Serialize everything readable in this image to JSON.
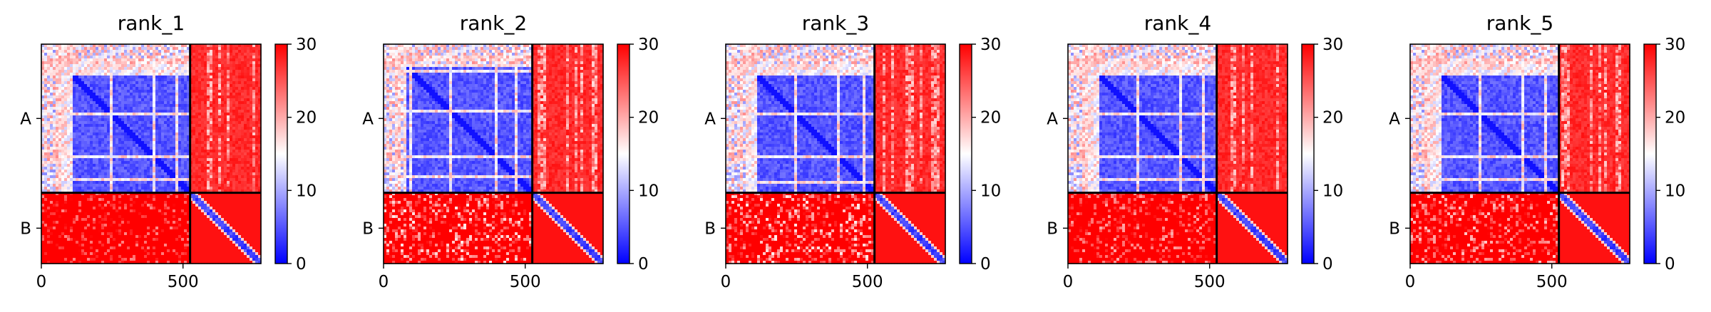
{
  "chart_data": [
    {
      "type": "heatmap",
      "title": "rank_1",
      "chains": [
        "A",
        "B"
      ],
      "chain_boundary": 525,
      "length": 775,
      "xlim": [
        0,
        775
      ],
      "xticks": [
        0,
        500
      ],
      "xtick_labels": [
        "0",
        "500"
      ],
      "colorbar": {
        "cmap": "bwr",
        "range": [
          0,
          30
        ],
        "ticks": [
          0,
          10,
          20,
          30
        ],
        "tick_labels": [
          "0",
          "10",
          "20",
          "30"
        ],
        "colors": [
          "#0000ff",
          "#ffffff",
          "#ff0000"
        ]
      },
      "light_stripes": [
        60,
        80,
        100,
        245,
        400,
        480
      ],
      "inter_chain_noise": 0.2
    },
    {
      "type": "heatmap",
      "title": "rank_2",
      "chains": [
        "A",
        "B"
      ],
      "chain_boundary": 525,
      "length": 775,
      "xlim": [
        0,
        775
      ],
      "xticks": [
        0,
        500
      ],
      "xtick_labels": [
        "0",
        "500"
      ],
      "colorbar": {
        "cmap": "bwr",
        "range": [
          0,
          30
        ],
        "ticks": [
          0,
          10,
          20,
          30
        ],
        "tick_labels": [
          "0",
          "10",
          "20",
          "30"
        ],
        "colors": [
          "#0000ff",
          "#ffffff",
          "#ff0000"
        ]
      },
      "light_stripes": [
        50,
        75,
        95,
        240,
        395,
        470
      ],
      "inter_chain_noise": 0.35
    },
    {
      "type": "heatmap",
      "title": "rank_3",
      "chains": [
        "A",
        "B"
      ],
      "chain_boundary": 525,
      "length": 775,
      "xlim": [
        0,
        775
      ],
      "xticks": [
        0,
        500
      ],
      "xtick_labels": [
        "0",
        "500"
      ],
      "colorbar": {
        "cmap": "bwr",
        "range": [
          0,
          30
        ],
        "ticks": [
          0,
          10,
          20,
          30
        ],
        "tick_labels": [
          "0",
          "10",
          "20",
          "30"
        ],
        "colors": [
          "#0000ff",
          "#ffffff",
          "#ff0000"
        ]
      },
      "light_stripes": [
        55,
        80,
        100,
        245,
        400,
        485
      ],
      "inter_chain_noise": 0.35
    },
    {
      "type": "heatmap",
      "title": "rank_4",
      "chains": [
        "A",
        "B"
      ],
      "chain_boundary": 525,
      "length": 775,
      "xlim": [
        0,
        775
      ],
      "xticks": [
        0,
        500
      ],
      "xtick_labels": [
        "0",
        "500"
      ],
      "colorbar": {
        "cmap": "bwr",
        "range": [
          0,
          30
        ],
        "ticks": [
          0,
          10,
          20,
          30
        ],
        "tick_labels": [
          "0",
          "10",
          "20",
          "30"
        ],
        "colors": [
          "#0000ff",
          "#ffffff",
          "#ff0000"
        ]
      },
      "light_stripes": [
        60,
        80,
        100,
        245,
        400,
        480
      ],
      "inter_chain_noise": 0.25
    },
    {
      "type": "heatmap",
      "title": "rank_5",
      "chains": [
        "A",
        "B"
      ],
      "chain_boundary": 525,
      "length": 775,
      "xlim": [
        0,
        775
      ],
      "xticks": [
        0,
        500
      ],
      "xtick_labels": [
        "0",
        "500"
      ],
      "colorbar": {
        "cmap": "bwr",
        "range": [
          0,
          30
        ],
        "ticks": [
          0,
          10,
          20,
          30
        ],
        "tick_labels": [
          "0",
          "10",
          "20",
          "30"
        ],
        "colors": [
          "#0000ff",
          "#ffffff",
          "#ff0000"
        ]
      },
      "light_stripes": [
        60,
        80,
        100,
        245,
        400,
        480
      ],
      "inter_chain_noise": 0.3
    }
  ]
}
